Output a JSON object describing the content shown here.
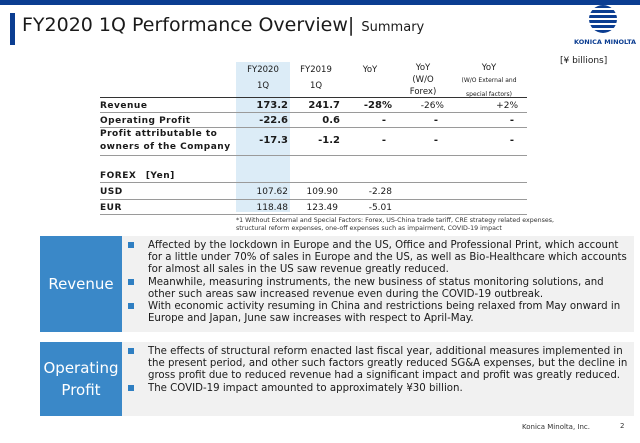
{
  "header": {
    "title": "FY2020 1Q Performance Overview",
    "separator": "|",
    "subtitle": "Summary",
    "logo_text": "KONICA MINOLTA"
  },
  "units": "[¥ billions]",
  "table": {
    "columns": [
      {
        "line1": "FY2020",
        "line2": "1Q"
      },
      {
        "line1": "FY2019",
        "line2": "1Q"
      },
      {
        "line1": "YoY",
        "line2": ""
      },
      {
        "line1": "YoY",
        "line2": "(W/O",
        "line3": "Forex)"
      },
      {
        "line1": "YoY",
        "line2": "(W/O External and",
        "line3": "special factors)"
      }
    ],
    "rows": [
      {
        "label": "Revenue",
        "values": [
          "173.2",
          "241.7",
          "-28%",
          "-26%",
          "+2%"
        ]
      },
      {
        "label": "Operating Profit",
        "values": [
          "-22.6",
          "0.6",
          "-",
          "-",
          "-"
        ]
      },
      {
        "label": "Profit attributable to",
        "label2": "owners of the Company",
        "values": [
          "-17.3",
          "-1.2",
          "-",
          "-",
          "-"
        ]
      }
    ],
    "forex_label": "FOREX　[Yen]",
    "forex_rows": [
      {
        "label": "USD",
        "values": [
          "107.62",
          "109.90",
          "-2.28"
        ]
      },
      {
        "label": "EUR",
        "values": [
          "118.48",
          "123.49",
          "-5.01"
        ]
      }
    ],
    "footnote_line1": "*1 Without External and Special Factors: Forex, US-China trade tariff, CRE strategy related expenses,",
    "footnote_line2": "structural reform expenses, one-off expenses such as impairment, COVID-19 impact"
  },
  "revenue_panel": {
    "label": "Revenue",
    "bullets": [
      "Affected by the lockdown in Europe and the US, Office and Professional Print, which account for a little under 70% of sales in Europe and the US, as well as Bio-Healthcare which accounts for almost all sales in the US saw revenue greatly reduced.",
      "Meanwhile, measuring instruments, the new business of status monitoring solutions, and other such areas saw increased revenue even during the COVID-19 outbreak.",
      "With economic activity resuming in China and restrictions being relaxed from May onward in Europe and Japan, June saw increases with respect to April-May."
    ]
  },
  "profit_panel": {
    "label_line1": "Operating",
    "label_line2": "Profit",
    "bullets": [
      "The effects of structural reform enacted last fiscal year, additional measures implemented in the present period, and other such factors greatly reduced SG&A expenses, but the decline in gross profit due to reduced revenue had a significant impact and profit was greatly reduced.",
      "The COVID-19 impact amounted to approximately ¥30 billion."
    ]
  },
  "footer": {
    "company": "Konica Minolta, Inc.",
    "page": "2"
  },
  "colors": {
    "brand_blue": "#0b3d91",
    "label_blue": "#3a88c8",
    "highlight_column": "#dcecf7",
    "panel_bg": "#f1f1f1"
  }
}
